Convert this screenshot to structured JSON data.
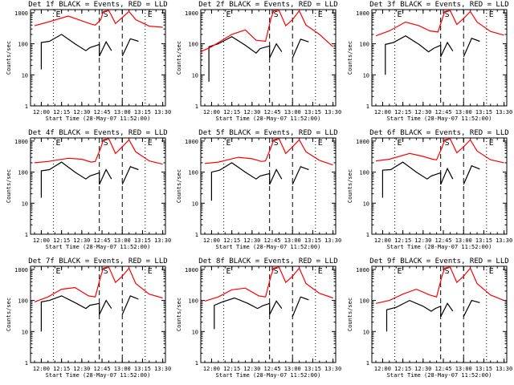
{
  "figure": {
    "xlabel": "Start Time (28-May-07 11:52:00)",
    "ylabel": "Counts/sec",
    "time_ticks": [
      "12:00",
      "12:15",
      "12:30",
      "12:45",
      "13:00",
      "13:15",
      "13:30"
    ],
    "y_ticks": [
      "1",
      "10",
      "100",
      "1000"
    ],
    "markers": [
      "E",
      "S",
      "E"
    ],
    "colors": {
      "events": "#000000",
      "lld": "#ff0000"
    }
  },
  "chart_data": [
    {
      "type": "line",
      "title": "Det 1f BLACK = Events, RED = LLD",
      "xlabel": "Start Time (28-May-07 11:52:00)",
      "ylabel": "Counts/sec",
      "ylim": [
        1,
        1000
      ],
      "yscale": "log",
      "xlim": [
        "11:52",
        "13:32"
      ],
      "vertical_lines": {
        "dotted": [
          "12:09",
          "13:17"
        ],
        "dashed": [
          "12:43",
          "13:00"
        ]
      },
      "series": [
        {
          "name": "Events",
          "x": [
            "12:00",
            "12:00",
            "12:06",
            "12:15",
            "12:25",
            "12:33",
            "12:36",
            "12:43",
            "12:43",
            "12:48",
            "12:52",
            "13:00",
            "13:00",
            "13:06",
            "13:12"
          ],
          "y": [
            15,
            110,
            120,
            200,
            100,
            60,
            75,
            95,
            40,
            115,
            60,
            null,
            40,
            145,
            120
          ]
        },
        {
          "name": "LLD",
          "x": [
            "11:55",
            "12:05",
            "12:20",
            "12:30",
            "12:37",
            "12:40",
            "12:44",
            "12:46",
            "12:50",
            "12:55",
            "13:00",
            "13:05",
            "13:10",
            "13:20",
            "13:30"
          ],
          "y": [
            380,
            500,
            780,
            550,
            430,
            400,
            600,
            1100,
            1200,
            450,
            700,
            1100,
            600,
            370,
            340
          ]
        }
      ]
    },
    {
      "type": "line",
      "title": "Det 2f BLACK = Events, RED = LLD",
      "xlabel": "Start Time (28-May-07 11:52:00)",
      "ylabel": "Counts/sec",
      "ylim": [
        1,
        1000
      ],
      "yscale": "log",
      "xlim": [
        "11:52",
        "13:32"
      ],
      "vertical_lines": {
        "dotted": [
          "12:09",
          "13:17"
        ],
        "dashed": [
          "12:43",
          "13:00"
        ]
      },
      "series": [
        {
          "name": "Events",
          "x": [
            "11:58",
            "11:58",
            "12:05",
            "12:15",
            "12:25",
            "12:33",
            "12:36",
            "12:43",
            "12:43",
            "12:48",
            "12:52",
            "13:00",
            "13:00",
            "13:06",
            "13:12"
          ],
          "y": [
            6,
            80,
            100,
            170,
            90,
            50,
            70,
            85,
            35,
            100,
            55,
            null,
            35,
            140,
            115
          ]
        },
        {
          "name": "LLD",
          "x": [
            "11:52",
            "12:00",
            "12:15",
            "12:25",
            "12:33",
            "12:40",
            "12:44",
            "12:46",
            "12:50",
            "12:55",
            "13:00",
            "13:05",
            "13:10",
            "13:20",
            "13:30"
          ],
          "y": [
            55,
            80,
            200,
            280,
            130,
            120,
            650,
            1150,
            1200,
            380,
            600,
            1150,
            400,
            200,
            80
          ]
        }
      ]
    },
    {
      "type": "line",
      "title": "Det 3f BLACK = Events, RED = LLD",
      "xlabel": "Start Time (28-May-07 11:52:00)",
      "ylabel": "Counts/sec",
      "ylim": [
        1,
        1000
      ],
      "yscale": "log",
      "xlim": [
        "11:52",
        "13:32"
      ],
      "vertical_lines": {
        "dotted": [
          "12:09",
          "13:17"
        ],
        "dashed": [
          "12:43",
          "13:00"
        ]
      },
      "series": [
        {
          "name": "Events",
          "x": [
            "12:02",
            "12:02",
            "12:08",
            "12:17",
            "12:27",
            "12:34",
            "12:38",
            "12:43",
            "12:43",
            "12:48",
            "12:52",
            "13:00",
            "13:00",
            "13:06",
            "13:12"
          ],
          "y": [
            10,
            95,
            110,
            180,
            95,
            55,
            72,
            90,
            38,
            110,
            58,
            null,
            38,
            150,
            120
          ]
        },
        {
          "name": "LLD",
          "x": [
            "11:55",
            "12:05",
            "12:17",
            "12:27",
            "12:35",
            "12:41",
            "12:44",
            "12:46",
            "12:50",
            "12:55",
            "13:00",
            "13:05",
            "13:10",
            "13:20",
            "13:30"
          ],
          "y": [
            180,
            260,
            500,
            380,
            260,
            240,
            600,
            1100,
            1200,
            420,
            650,
            1100,
            500,
            250,
            190
          ]
        }
      ]
    },
    {
      "type": "line",
      "title": "Det 4f BLACK = Events, RED = LLD",
      "xlabel": "Start Time (28-May-07 11:52:00)",
      "ylabel": "Counts/sec",
      "ylim": [
        1,
        1000
      ],
      "yscale": "log",
      "xlim": [
        "11:52",
        "13:32"
      ],
      "vertical_lines": {
        "dotted": [
          "12:09",
          "13:17"
        ],
        "dashed": [
          "12:43",
          "13:00"
        ]
      },
      "series": [
        {
          "name": "Events",
          "x": [
            "12:00",
            "12:00",
            "12:06",
            "12:15",
            "12:25",
            "12:33",
            "12:36",
            "12:43",
            "12:43",
            "12:48",
            "12:52",
            "13:00",
            "13:00",
            "13:06",
            "13:12"
          ],
          "y": [
            15,
            110,
            120,
            210,
            100,
            60,
            75,
            95,
            40,
            120,
            60,
            null,
            40,
            150,
            120
          ]
        },
        {
          "name": "LLD",
          "x": [
            "11:55",
            "12:05",
            "12:20",
            "12:30",
            "12:37",
            "12:40",
            "12:44",
            "12:46",
            "12:50",
            "12:55",
            "13:00",
            "13:05",
            "13:10",
            "13:20",
            "13:30"
          ],
          "y": [
            200,
            220,
            280,
            260,
            210,
            220,
            600,
            1100,
            1200,
            400,
            650,
            1100,
            450,
            230,
            180
          ]
        }
      ]
    },
    {
      "type": "line",
      "title": "Det 5f BLACK = Events, RED = LLD",
      "xlabel": "Start Time (28-May-07 11:52:00)",
      "ylabel": "Counts/sec",
      "ylim": [
        1,
        1000
      ],
      "yscale": "log",
      "xlim": [
        "11:52",
        "13:32"
      ],
      "vertical_lines": {
        "dotted": [
          "12:09",
          "13:17"
        ],
        "dashed": [
          "12:43",
          "13:00"
        ]
      },
      "series": [
        {
          "name": "Events",
          "x": [
            "12:00",
            "12:00",
            "12:06",
            "12:15",
            "12:25",
            "12:33",
            "12:36",
            "12:43",
            "12:43",
            "12:48",
            "12:52",
            "13:00",
            "13:00",
            "13:06",
            "13:12"
          ],
          "y": [
            12,
            100,
            115,
            200,
            100,
            60,
            75,
            90,
            40,
            120,
            60,
            null,
            40,
            150,
            120
          ]
        },
        {
          "name": "LLD",
          "x": [
            "11:55",
            "12:05",
            "12:20",
            "12:30",
            "12:37",
            "12:40",
            "12:44",
            "12:46",
            "12:50",
            "12:55",
            "13:00",
            "13:05",
            "13:10",
            "13:20",
            "13:30"
          ],
          "y": [
            190,
            210,
            300,
            270,
            220,
            230,
            620,
            1100,
            1200,
            400,
            650,
            1100,
            450,
            240,
            170
          ]
        }
      ]
    },
    {
      "type": "line",
      "title": "Det 6f BLACK = Events, RED = LLD",
      "xlabel": "Start Time (28-May-07 11:52:00)",
      "ylabel": "Counts/sec",
      "ylim": [
        1,
        1000
      ],
      "yscale": "log",
      "xlim": [
        "11:52",
        "13:32"
      ],
      "vertical_lines": {
        "dotted": [
          "12:09",
          "13:17"
        ],
        "dashed": [
          "12:43",
          "13:00"
        ]
      },
      "series": [
        {
          "name": "Events",
          "x": [
            "12:00",
            "12:00",
            "12:06",
            "12:15",
            "12:25",
            "12:33",
            "12:36",
            "12:43",
            "12:43",
            "12:48",
            "12:52",
            "13:00",
            "13:00",
            "13:06",
            "13:12"
          ],
          "y": [
            15,
            115,
            120,
            210,
            100,
            60,
            75,
            95,
            40,
            130,
            60,
            null,
            40,
            160,
            125
          ]
        },
        {
          "name": "LLD",
          "x": [
            "11:55",
            "12:05",
            "12:20",
            "12:30",
            "12:37",
            "12:40",
            "12:44",
            "12:46",
            "12:50",
            "12:55",
            "13:00",
            "13:05",
            "13:10",
            "13:20",
            "13:30"
          ],
          "y": [
            230,
            260,
            400,
            320,
            260,
            250,
            620,
            1100,
            1200,
            420,
            650,
            1100,
            480,
            250,
            200
          ]
        }
      ]
    },
    {
      "type": "line",
      "title": "Det 7f BLACK = Events, RED = LLD",
      "xlabel": "Start Time (28-May-07 11:52:00)",
      "ylabel": "Counts/sec",
      "ylim": [
        1,
        1000
      ],
      "yscale": "log",
      "xlim": [
        "11:52",
        "13:32"
      ],
      "vertical_lines": {
        "dotted": [
          "12:09",
          "13:17"
        ],
        "dashed": [
          "12:43",
          "13:00"
        ]
      },
      "series": [
        {
          "name": "Events",
          "x": [
            "12:00",
            "12:00",
            "12:06",
            "12:15",
            "12:25",
            "12:33",
            "12:36",
            "12:43",
            "12:43",
            "12:48",
            "12:52",
            "13:00",
            "13:00",
            "13:06",
            "13:12"
          ],
          "y": [
            10,
            90,
            100,
            140,
            85,
            55,
            70,
            80,
            35,
            100,
            55,
            null,
            35,
            140,
            110
          ]
        },
        {
          "name": "LLD",
          "x": [
            "11:55",
            "12:05",
            "12:15",
            "12:25",
            "12:35",
            "12:40",
            "12:44",
            "12:46",
            "12:50",
            "12:55",
            "13:00",
            "13:05",
            "13:10",
            "13:20",
            "13:30"
          ],
          "y": [
            90,
            130,
            230,
            260,
            140,
            130,
            600,
            1100,
            1200,
            380,
            600,
            1100,
            350,
            160,
            120
          ]
        }
      ]
    },
    {
      "type": "line",
      "title": "Det 8f BLACK = Events, RED = LLD",
      "xlabel": "Start Time (28-May-07 11:52:00)",
      "ylabel": "Counts/sec",
      "ylim": [
        1,
        1000
      ],
      "yscale": "log",
      "xlim": [
        "11:52",
        "13:32"
      ],
      "vertical_lines": {
        "dotted": [
          "12:09",
          "13:17"
        ],
        "dashed": [
          "12:43",
          "13:00"
        ]
      },
      "series": [
        {
          "name": "Events",
          "x": [
            "12:02",
            "12:02",
            "12:08",
            "12:17",
            "12:27",
            "12:34",
            "12:38",
            "12:43",
            "12:43",
            "12:48",
            "12:52",
            "13:00",
            "13:00",
            "13:06",
            "13:12"
          ],
          "y": [
            12,
            70,
            90,
            120,
            80,
            55,
            68,
            80,
            35,
            95,
            55,
            null,
            30,
            130,
            105
          ]
        },
        {
          "name": "LLD",
          "x": [
            "11:55",
            "12:05",
            "12:15",
            "12:25",
            "12:35",
            "12:40",
            "12:44",
            "12:46",
            "12:50",
            "12:55",
            "13:00",
            "13:05",
            "13:10",
            "13:20",
            "13:30"
          ],
          "y": [
            95,
            130,
            220,
            250,
            140,
            130,
            620,
            1100,
            1200,
            380,
            600,
            1100,
            350,
            170,
            120
          ]
        }
      ]
    },
    {
      "type": "line",
      "title": "Det 9f BLACK = Events, RED = LLD",
      "xlabel": "Start Time (28-May-07 11:52:00)",
      "ylabel": "Counts/sec",
      "ylim": [
        1,
        1000
      ],
      "yscale": "log",
      "xlim": [
        "11:52",
        "13:32"
      ],
      "vertical_lines": {
        "dotted": [
          "12:09",
          "13:17"
        ],
        "dashed": [
          "12:43",
          "13:00"
        ]
      },
      "series": [
        {
          "name": "Events",
          "x": [
            "12:03",
            "12:03",
            "12:10",
            "12:20",
            "12:30",
            "12:36",
            "12:39",
            "12:43",
            "12:43",
            "12:48",
            "12:52",
            "13:00",
            "13:00",
            "13:06",
            "13:12"
          ],
          "y": [
            10,
            50,
            60,
            100,
            65,
            45,
            55,
            65,
            30,
            80,
            45,
            null,
            30,
            100,
            85
          ]
        },
        {
          "name": "LLD",
          "x": [
            "11:55",
            "12:05",
            "12:15",
            "12:25",
            "12:35",
            "12:40",
            "12:44",
            "12:46",
            "12:50",
            "12:55",
            "13:00",
            "13:05",
            "13:10",
            "13:20",
            "13:30"
          ],
          "y": [
            80,
            100,
            160,
            230,
            150,
            130,
            620,
            1100,
            1200,
            380,
            600,
            1100,
            350,
            150,
            100
          ]
        }
      ]
    }
  ]
}
